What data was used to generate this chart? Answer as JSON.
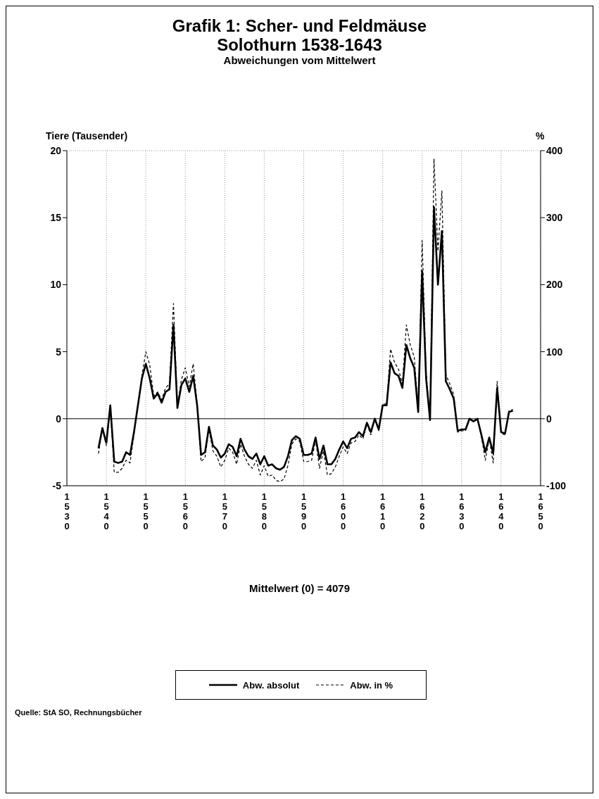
{
  "chart_data": {
    "type": "line",
    "title": "Grafik 1: Scher- und Feldmäuse\nSolothurn 1538-1643",
    "subtitle": "Abweichungen vom Mittelwert",
    "ylabel": "Tiere (Tausender)",
    "y2label": "%",
    "x": [
      1538,
      1539,
      1540,
      1541,
      1542,
      1543,
      1544,
      1545,
      1546,
      1547,
      1548,
      1549,
      1550,
      1551,
      1552,
      1553,
      1554,
      1555,
      1556,
      1557,
      1558,
      1559,
      1560,
      1561,
      1562,
      1563,
      1564,
      1565,
      1566,
      1567,
      1568,
      1569,
      1570,
      1571,
      1572,
      1573,
      1574,
      1575,
      1576,
      1577,
      1578,
      1579,
      1580,
      1581,
      1582,
      1583,
      1584,
      1585,
      1586,
      1587,
      1588,
      1589,
      1590,
      1591,
      1592,
      1593,
      1594,
      1595,
      1596,
      1597,
      1598,
      1599,
      1600,
      1601,
      1602,
      1603,
      1604,
      1605,
      1606,
      1607,
      1608,
      1609,
      1610,
      1611,
      1612,
      1613,
      1614,
      1615,
      1616,
      1617,
      1618,
      1619,
      1620,
      1621,
      1622,
      1623,
      1624,
      1625,
      1626,
      1627,
      1628,
      1629,
      1630,
      1631,
      1632,
      1633,
      1634,
      1635,
      1636,
      1637,
      1638,
      1639,
      1640,
      1641,
      1642,
      1643
    ],
    "series": [
      {
        "name": "Abw. absolut",
        "color": "#000000",
        "line_style": "solid",
        "values": [
          -2.2,
          -0.7,
          -1.8,
          1.0,
          -3.2,
          -3.3,
          -3.2,
          -2.5,
          -2.7,
          -1.0,
          1.0,
          3.0,
          4.1,
          3.0,
          1.5,
          1.9,
          1.2,
          2.0,
          2.2,
          7.0,
          0.8,
          2.5,
          3.0,
          2.0,
          3.2,
          1.0,
          -2.7,
          -2.5,
          -0.6,
          -2.0,
          -2.3,
          -2.9,
          -2.6,
          -1.9,
          -2.1,
          -2.8,
          -1.5,
          -2.3,
          -2.8,
          -3.0,
          -2.6,
          -3.4,
          -2.8,
          -3.5,
          -3.4,
          -3.7,
          -3.8,
          -3.6,
          -2.8,
          -1.6,
          -1.3,
          -1.5,
          -2.7,
          -2.7,
          -2.6,
          -1.4,
          -3.0,
          -2.0,
          -3.4,
          -3.4,
          -3.0,
          -2.3,
          -1.7,
          -2.2,
          -1.5,
          -1.4,
          -1.0,
          -1.3,
          -0.3,
          -1.0,
          0.0,
          -0.8,
          1.0,
          1.0,
          4.2,
          3.4,
          3.2,
          2.3,
          5.5,
          4.5,
          3.8,
          0.5,
          11.0,
          3.0,
          -0.1,
          15.8,
          10.0,
          14.0,
          2.8,
          2.2,
          1.5,
          -0.9,
          -0.8,
          -0.8,
          0.0,
          -0.2,
          0.0,
          -1.2,
          -2.5,
          -1.4,
          -2.6,
          2.3,
          -1.0,
          -1.1,
          0.5,
          0.6
        ]
      },
      {
        "name": "Abw. in %",
        "color": "#000000",
        "line_style": "dashed",
        "axis": "y2",
        "values": [
          -52,
          -16,
          -40,
          18,
          -80,
          -80,
          -74,
          -62,
          -66,
          -24,
          22,
          64,
          100,
          80,
          34,
          40,
          28,
          46,
          52,
          172,
          18,
          58,
          76,
          48,
          82,
          22,
          -64,
          -58,
          -16,
          -48,
          -56,
          -72,
          -62,
          -44,
          -50,
          -68,
          -38,
          -56,
          -68,
          -74,
          -62,
          -84,
          -70,
          -86,
          -84,
          -92,
          -94,
          -90,
          -70,
          -38,
          -30,
          -34,
          -64,
          -64,
          -62,
          -32,
          -74,
          -48,
          -84,
          -82,
          -72,
          -56,
          -42,
          -52,
          -36,
          -34,
          -24,
          -30,
          -8,
          -24,
          0,
          -18,
          22,
          22,
          104,
          84,
          74,
          52,
          140,
          110,
          92,
          12,
          266,
          70,
          -2,
          388,
          250,
          340,
          66,
          52,
          36,
          -20,
          -18,
          -18,
          0,
          -4,
          0,
          -26,
          -62,
          -30,
          -66,
          56,
          -22,
          -24,
          12,
          14
        ]
      }
    ],
    "xlim": [
      1530,
      1650
    ],
    "xticks": [
      1530,
      1540,
      1550,
      1560,
      1570,
      1580,
      1590,
      1600,
      1610,
      1620,
      1630,
      1640,
      1650
    ],
    "ylim": [
      -5,
      20
    ],
    "yticks": [
      -5,
      0,
      5,
      10,
      15,
      20
    ],
    "y2lim": [
      -100,
      400
    ],
    "y2ticks": [
      -100,
      0,
      100,
      200,
      300,
      400
    ],
    "ref_lines": [
      {
        "axis": "y",
        "value": 0,
        "color": "#000000"
      }
    ],
    "grid": true,
    "legend": "bottom",
    "marker": "none",
    "annotations": [
      "Mittelwert (0) = 4079",
      "Quelle: StA SO, Rechnungsbücher"
    ]
  }
}
